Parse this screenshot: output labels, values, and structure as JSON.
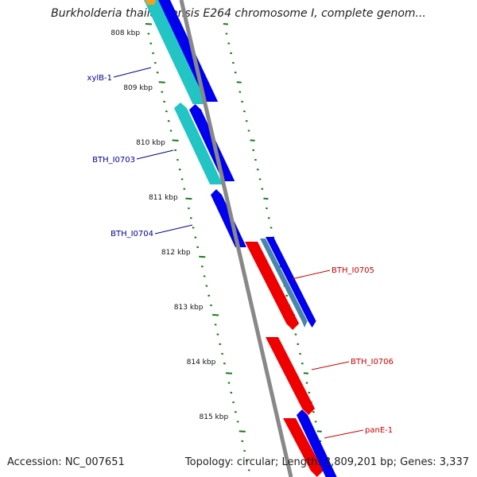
{
  "title": "Burkholderia thailandensis E264 chromosome I, complete genom...",
  "footer": {
    "accession": "Accession: NC_007651",
    "summary": "Topology: circular; Length: 3,809,201 bp; Genes: 3,337"
  },
  "colors": {
    "backbone": "#888888",
    "tick": "#1a7a1a",
    "forward_gene": "#0000ee",
    "forward_label": "#000099",
    "forward_light": "#22c4c4",
    "reverse_gene": "#ee0000",
    "reverse_label": "#cc0000",
    "gc_skew_gray": "#4a86a8",
    "orange": "#f4a020"
  },
  "axis": {
    "tick_labels": [
      "808 kbp",
      "809 kbp",
      "810 kbp",
      "811 kbp",
      "812 kbp",
      "813 kbp",
      "814 kbp",
      "815 kbp"
    ]
  },
  "genes": {
    "forward": [
      {
        "name": "xylB-1"
      },
      {
        "name": "BTH_I0703"
      },
      {
        "name": "BTH_I0704"
      }
    ],
    "reverse": [
      {
        "name": "BTH_I0705"
      },
      {
        "name": "BTH_I0706"
      },
      {
        "name": "panE-1"
      }
    ]
  }
}
